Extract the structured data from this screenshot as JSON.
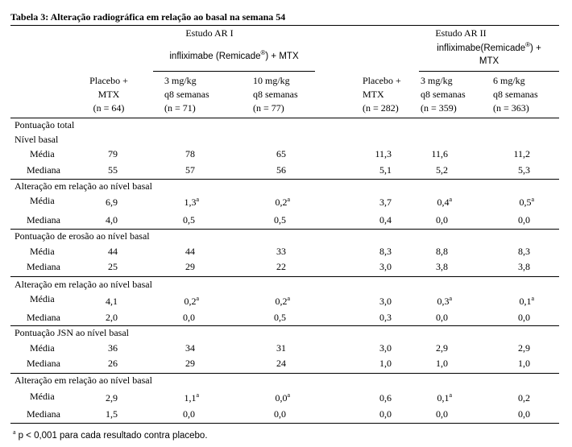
{
  "title": "Tabela 3: Alteração radiográfica em relação ao basal na semana 54",
  "study1": "Estudo AR I",
  "study2": "Estudo AR II",
  "infl_group1": {
    "text": "infliximabe (Remicade",
    "sup": "®",
    "after": ") + MTX"
  },
  "infl_group2": {
    "line1": "infliximabe(Remicade",
    "sup": "®",
    "after": ") +",
    "line2": "MTX"
  },
  "columns": [
    {
      "l1": "Placebo +",
      "l2": "MTX",
      "l3": "(n = 64)"
    },
    {
      "l1": "3 mg/kg",
      "l2": "q8 semanas",
      "l3": "(n = 71)"
    },
    {
      "l1": "10 mg/kg",
      "l2": "q8 semanas",
      "l3": "(n = 77)"
    },
    {
      "l1": "Placebo +",
      "l2": "MTX",
      "l3": "(n = 282)"
    },
    {
      "l1": "3 mg/kg",
      "l2": "q8 semanas",
      "l3": "(n = 359)"
    },
    {
      "l1": "6 mg/kg",
      "l2": "q8 semanas",
      "l3": "(n = 363)"
    }
  ],
  "labels": {
    "total": "Pontuação total",
    "nivel_basal": "Nível basal",
    "alteracao": "Alteração em relação ao nível basal",
    "erosao": "Pontuação de erosão ao nível basal",
    "jsn": "Pontuação JSN ao nível basal",
    "media": "Média",
    "mediana": "Mediana"
  },
  "sup_a": "a",
  "rows": {
    "r1": [
      "79",
      "78",
      "65",
      "11,3",
      "11,6",
      "11,2"
    ],
    "r2": [
      "55",
      "57",
      "56",
      "5,1",
      "5,2",
      "5,3"
    ],
    "r3": [
      "6,9",
      "1,3",
      "0,2",
      "3,7",
      "0,4",
      "0,5"
    ],
    "r4": [
      "4,0",
      "0,5",
      "0,5",
      "0,4",
      "0,0",
      "0,0"
    ],
    "r5": [
      "44",
      "44",
      "33",
      "8,3",
      "8,8",
      "8,3"
    ],
    "r6": [
      "25",
      "29",
      "22",
      "3,0",
      "3,8",
      "3,8"
    ],
    "r7": [
      "4,1",
      "0,2",
      "0,2",
      "3,0",
      "0,3",
      "0,1"
    ],
    "r8": [
      "2,0",
      "0,0",
      "0,5",
      "0,3",
      "0,0",
      "0,0"
    ],
    "r9": [
      "36",
      "34",
      "31",
      "3,0",
      "2,9",
      "2,9"
    ],
    "r10": [
      "26",
      "29",
      "24",
      "1,0",
      "1,0",
      "1,0"
    ],
    "r11": [
      "2,9",
      "1,1",
      "0,0",
      "0,6",
      "0,1",
      "0,2"
    ],
    "r12": [
      "1,5",
      "0,0",
      "0,0",
      "0,0",
      "0,0",
      "0,0"
    ]
  },
  "footnote_text": "p < 0,001 para cada resultado contra placebo."
}
